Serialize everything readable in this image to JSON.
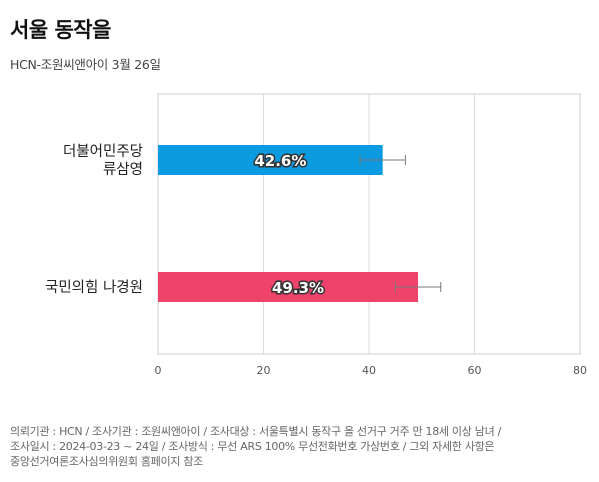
{
  "header": {
    "title": "서울 동작을",
    "subtitle": "HCN-조원씨앤아이 3월 26일"
  },
  "colors": {
    "series": [
      "#0c9ae0",
      "#f0436b"
    ],
    "gridline": "#dddddd",
    "error_bar": "#777777"
  },
  "chart_data": {
    "type": "bar",
    "orientation": "horizontal",
    "categories": [
      "더불어민주당\n류삼영",
      "국민의힘 나경원"
    ],
    "values": [
      42.6,
      49.3
    ],
    "value_labels": [
      "42.6%",
      "49.3%"
    ],
    "error_ranges": [
      [
        38.3,
        46.9
      ],
      [
        45.0,
        53.6
      ]
    ],
    "xlim": [
      0,
      80
    ],
    "xticks": [
      "0",
      "20",
      "40",
      "60",
      "80"
    ],
    "grid": true,
    "title": "",
    "xlabel": "",
    "ylabel": ""
  },
  "footer": {
    "lines": [
      "의뢰기관 : HCN / 조사기관 : 조원씨앤아이 / 조사대상 : 서울특별시 동작구 을 선거구 거주 만 18세 이상 남녀 /",
      "조사일시 : 2024-03-23 ~ 24일 / 조사방식 : 무선 ARS 100% 무선전화번호 가상번호 / 그외 자세한 사항은",
      "중앙선거여론조사심의위원회 홈페이지 참조"
    ]
  }
}
